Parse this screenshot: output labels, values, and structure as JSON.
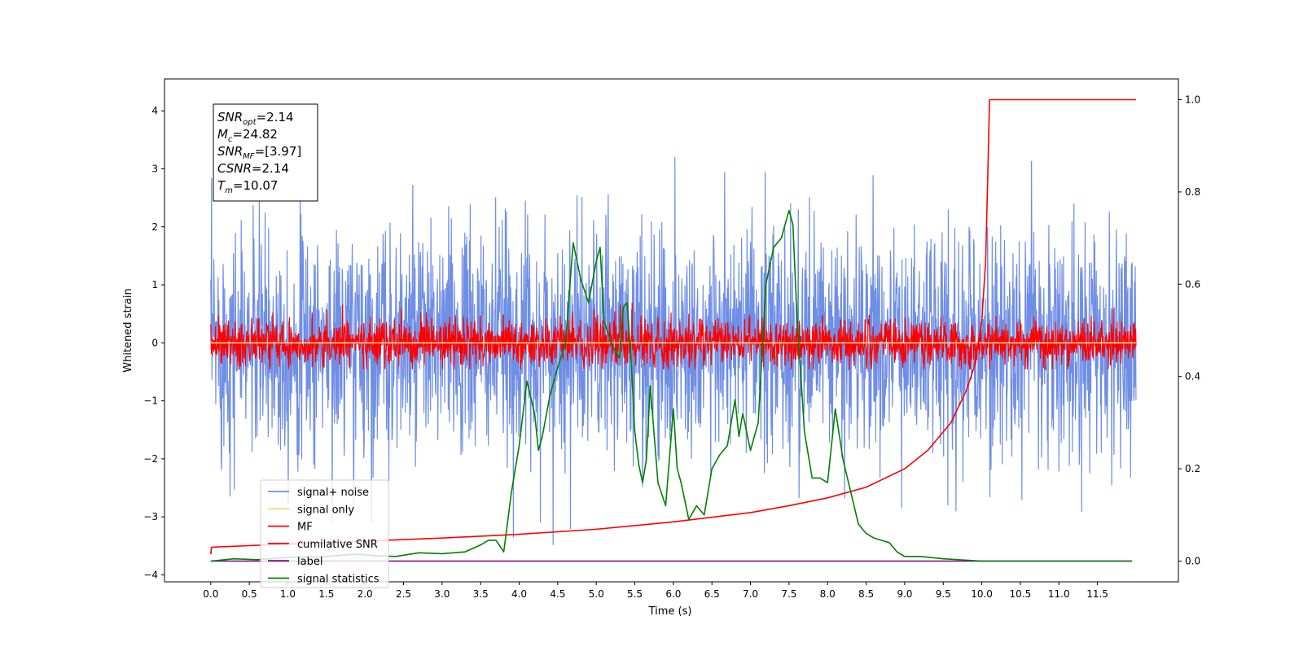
{
  "chart_data": {
    "type": "line",
    "title": "",
    "xlabel": "Time (s)",
    "ylabel": "Whitened strain",
    "xlim": [
      -0.6,
      12.55
    ],
    "ylim": [
      -4.12,
      4.55
    ],
    "y2lim": [
      -0.045,
      1.045
    ],
    "x_ticks": [
      0.0,
      0.5,
      1.0,
      1.5,
      2.0,
      2.5,
      3.0,
      3.5,
      4.0,
      4.5,
      5.0,
      5.5,
      6.0,
      6.5,
      7.0,
      7.5,
      8.0,
      8.5,
      9.0,
      9.5,
      10.0,
      10.5,
      11.0,
      11.5
    ],
    "x_tick_labels": [
      "0.0",
      "0.5",
      "1.0",
      "1.5",
      "2.0",
      "2.5",
      "3.0",
      "3.5",
      "4.0",
      "4.5",
      "5.0",
      "5.5",
      "6.0",
      "6.5",
      "7.0",
      "7.5",
      "8.0",
      "8.5",
      "9.0",
      "9.5",
      "10.0",
      "10.5",
      "11.0",
      "11.5"
    ],
    "y_ticks": [
      -4,
      -3,
      -2,
      -1,
      0,
      1,
      2,
      3,
      4
    ],
    "y_tick_labels": [
      "−4",
      "−3",
      "−2",
      "−1",
      "0",
      "1",
      "2",
      "3",
      "4"
    ],
    "y2_ticks": [
      0.0,
      0.2,
      0.4,
      0.6,
      0.8,
      1.0
    ],
    "y2_tick_labels": [
      "0.0",
      "0.2",
      "0.4",
      "0.6",
      "0.8",
      "1.0"
    ],
    "legend_position": "lower-left",
    "grid": false,
    "series": [
      {
        "name": "signal+ noise",
        "axis": "left",
        "color": "#6f8ee6",
        "style": "noise",
        "x_range": [
          0.0,
          12.0
        ],
        "mean": 0.0,
        "envelope_typical": 2.3,
        "peak_range": [
          -3.7,
          4.2
        ]
      },
      {
        "name": "signal only",
        "axis": "left",
        "color": "#ffd37a",
        "style": "line",
        "x": [
          0.0,
          12.0
        ],
        "y": [
          0.0,
          0.0
        ]
      },
      {
        "name": "MF",
        "axis": "left",
        "color": "#ff0000",
        "style": "noise",
        "x_range": [
          0.0,
          12.0
        ],
        "mean": 0.0,
        "envelope_typical": 0.45,
        "peak_range": [
          -0.45,
          0.85
        ]
      },
      {
        "name": "cumilative SNR",
        "axis": "right",
        "color": "#ff0000",
        "style": "line",
        "x": [
          0.0,
          0.01,
          1.0,
          2.0,
          3.0,
          4.0,
          5.0,
          6.0,
          7.0,
          7.5,
          8.0,
          8.5,
          9.0,
          9.3,
          9.6,
          9.8,
          9.9,
          10.0,
          10.05,
          10.08,
          10.1,
          11.0,
          12.0
        ],
        "y": [
          0.015,
          0.03,
          0.037,
          0.043,
          0.05,
          0.058,
          0.069,
          0.085,
          0.105,
          0.12,
          0.137,
          0.16,
          0.2,
          0.24,
          0.3,
          0.37,
          0.42,
          0.52,
          0.65,
          0.85,
          1.0,
          1.0,
          1.0
        ]
      },
      {
        "name": "label",
        "axis": "right",
        "color": "#7b007b",
        "style": "line",
        "x": [
          0.0,
          11.95
        ],
        "y": [
          0.0,
          0.0
        ]
      },
      {
        "name": "signal statistics",
        "axis": "right",
        "color": "#008000",
        "style": "line",
        "x": [
          0.0,
          0.3,
          0.6,
          1.0,
          1.5,
          1.9,
          2.1,
          2.4,
          2.7,
          3.0,
          3.3,
          3.5,
          3.6,
          3.7,
          3.8,
          3.9,
          4.0,
          4.1,
          4.2,
          4.25,
          4.3,
          4.4,
          4.5,
          4.6,
          4.7,
          4.8,
          4.9,
          5.0,
          5.05,
          5.1,
          5.2,
          5.3,
          5.35,
          5.4,
          5.45,
          5.5,
          5.55,
          5.6,
          5.65,
          5.7,
          5.8,
          5.9,
          6.0,
          6.05,
          6.1,
          6.2,
          6.3,
          6.4,
          6.5,
          6.6,
          6.7,
          6.8,
          6.85,
          6.9,
          7.0,
          7.1,
          7.2,
          7.3,
          7.4,
          7.5,
          7.55,
          7.6,
          7.7,
          7.8,
          7.9,
          8.0,
          8.1,
          8.2,
          8.3,
          8.4,
          8.5,
          8.6,
          8.7,
          8.8,
          8.9,
          9.0,
          9.2,
          9.5,
          10.0,
          11.95
        ],
        "y": [
          0.0,
          0.005,
          0.003,
          0.008,
          0.01,
          0.015,
          0.012,
          0.01,
          0.018,
          0.016,
          0.02,
          0.035,
          0.045,
          0.045,
          0.02,
          0.15,
          0.25,
          0.39,
          0.32,
          0.24,
          0.27,
          0.36,
          0.42,
          0.47,
          0.69,
          0.61,
          0.56,
          0.65,
          0.68,
          0.52,
          0.47,
          0.44,
          0.55,
          0.56,
          0.44,
          0.28,
          0.21,
          0.17,
          0.22,
          0.38,
          0.17,
          0.12,
          0.33,
          0.2,
          0.17,
          0.09,
          0.12,
          0.1,
          0.2,
          0.23,
          0.25,
          0.35,
          0.27,
          0.32,
          0.24,
          0.3,
          0.6,
          0.68,
          0.7,
          0.76,
          0.73,
          0.54,
          0.28,
          0.18,
          0.18,
          0.17,
          0.33,
          0.22,
          0.15,
          0.08,
          0.06,
          0.05,
          0.045,
          0.04,
          0.02,
          0.01,
          0.01,
          0.005,
          0.0,
          0.0
        ]
      }
    ],
    "annotations": [
      {
        "prefix": "SNR",
        "sub": "opt",
        "value": "=2.14"
      },
      {
        "prefix": "M",
        "sub": "c",
        "value": "=24.82"
      },
      {
        "prefix": "SNR",
        "sub": "MF",
        "value": "=[3.97]"
      },
      {
        "prefix": "CSNR",
        "sub": "",
        "value": "=2.14"
      },
      {
        "prefix": "T",
        "sub": "m",
        "value": "=10.07"
      }
    ]
  }
}
